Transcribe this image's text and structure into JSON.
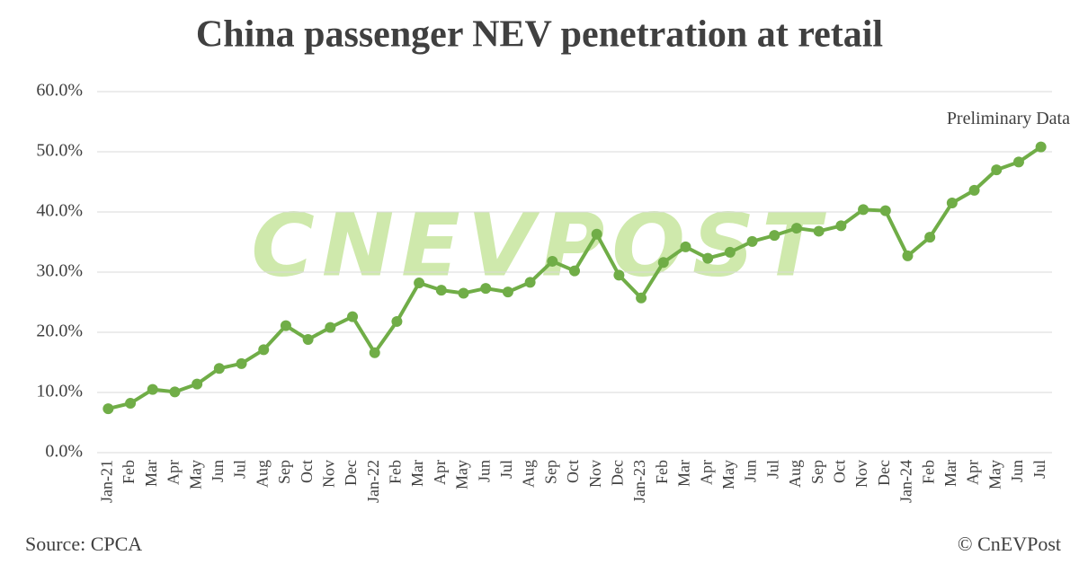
{
  "chart_data": {
    "type": "line",
    "title": "China passenger NEV penetration at retail",
    "categories": [
      "Jan-21",
      "Feb",
      "Mar",
      "Apr",
      "May",
      "Jun",
      "Jul",
      "Aug",
      "Sep",
      "Oct",
      "Nov",
      "Dec",
      "Jan-22",
      "Feb",
      "Mar",
      "Apr",
      "May",
      "Jun",
      "Jul",
      "Aug",
      "Sep",
      "Oct",
      "Nov",
      "Dec",
      "Jan-23",
      "Feb",
      "Mar",
      "Apr",
      "May",
      "Jun",
      "Jul",
      "Aug",
      "Sep",
      "Oct",
      "Nov",
      "Dec",
      "Jan-24",
      "Feb",
      "Mar",
      "Apr",
      "May",
      "Jun",
      "Jul"
    ],
    "series": [
      {
        "name": "NEV penetration",
        "color": "#70ad47",
        "values": [
          7.3,
          8.2,
          10.5,
          10.1,
          11.4,
          14.0,
          14.8,
          17.1,
          21.1,
          18.8,
          20.8,
          22.6,
          16.6,
          21.8,
          28.2,
          27.0,
          26.5,
          27.3,
          26.7,
          28.3,
          31.8,
          30.2,
          36.3,
          29.5,
          25.7,
          31.6,
          34.2,
          32.3,
          33.3,
          35.1,
          36.1,
          37.3,
          36.8,
          37.7,
          40.4,
          40.2,
          32.7,
          35.8,
          41.5,
          43.6,
          47.0,
          48.3,
          50.8
        ]
      }
    ],
    "ylim": [
      0,
      60
    ],
    "yticks": [
      {
        "value": 0,
        "label": "0.0%"
      },
      {
        "value": 10,
        "label": "10.0%"
      },
      {
        "value": 20,
        "label": "20.0%"
      },
      {
        "value": 30,
        "label": "30.0%"
      },
      {
        "value": 40,
        "label": "40.0%"
      },
      {
        "value": 50,
        "label": "50.0%"
      },
      {
        "value": 60,
        "label": "60.0%"
      }
    ],
    "grid": true,
    "annotation": "Preliminary Data",
    "watermark": "CNEVPOST",
    "source": "Source: CPCA",
    "credit": "© CnEVPost"
  }
}
